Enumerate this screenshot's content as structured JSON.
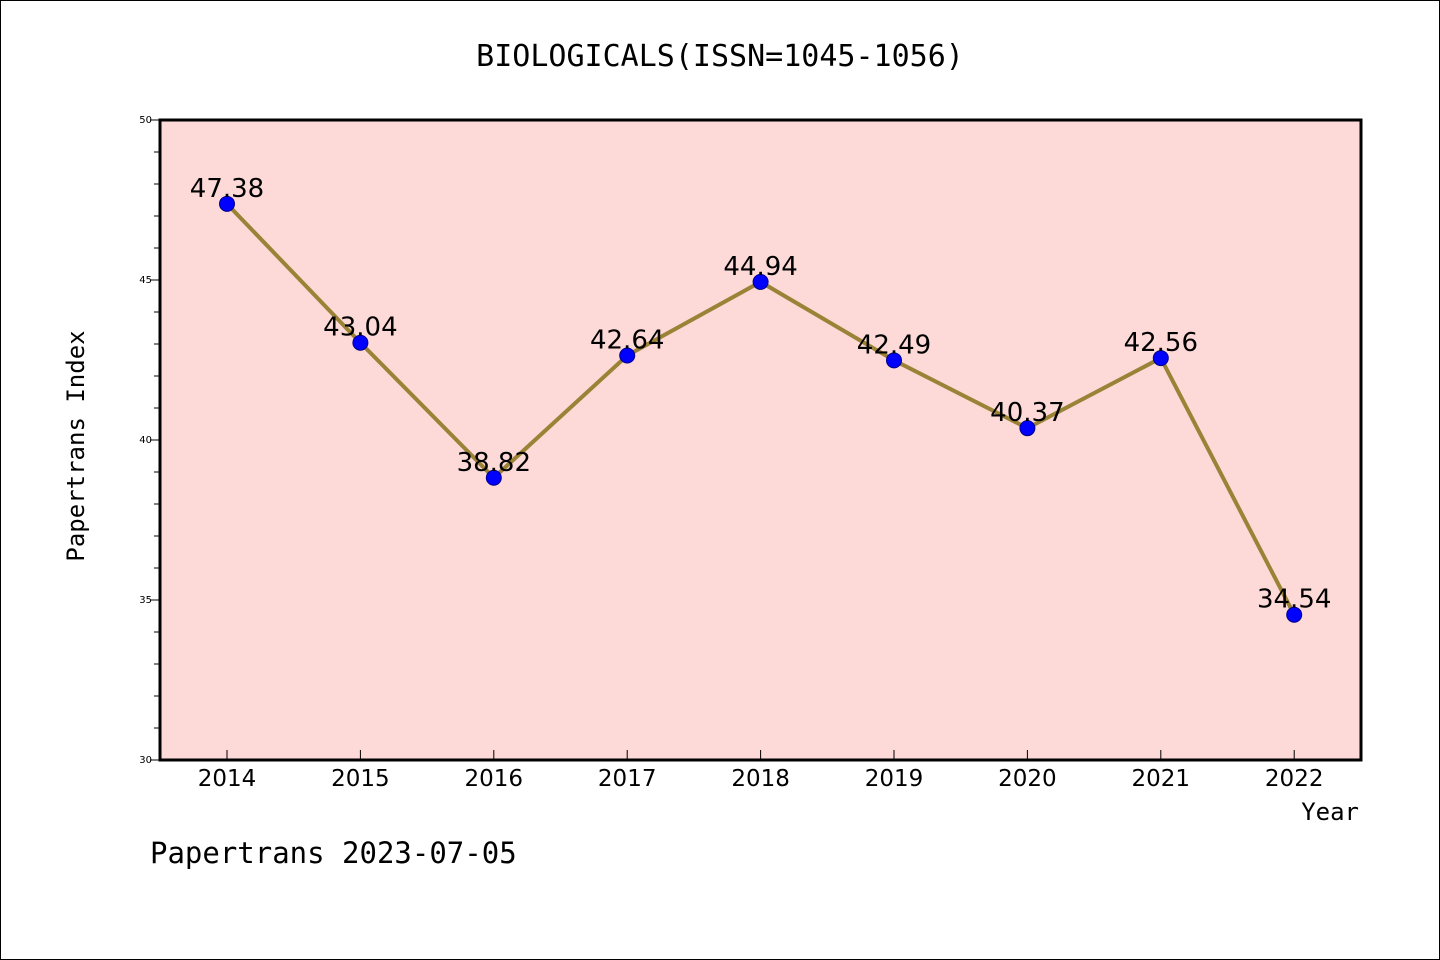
{
  "title": "BIOLOGICALS(ISSN=1045-1056)",
  "footer": "Papertrans 2023-07-05",
  "colors": {
    "background": "#ffffff",
    "plot_area": "#fdd9d7",
    "line": "#9a8236",
    "marker": "#0000ff",
    "axis": "#000000"
  },
  "chart_data": {
    "type": "line",
    "title": "BIOLOGICALS(ISSN=1045-1056)",
    "xlabel": "Year",
    "ylabel": "Papertrans Index",
    "x": [
      "2014",
      "2015",
      "2016",
      "2017",
      "2018",
      "2019",
      "2020",
      "2021",
      "2022"
    ],
    "series": [
      {
        "values": [
          47.38,
          43.04,
          38.82,
          42.64,
          44.94,
          42.49,
          40.37,
          42.56,
          34.54
        ],
        "labels": [
          "47.38",
          "43.04",
          "38.82",
          "42.64",
          "44.94",
          "42.49",
          "40.37",
          "42.56",
          "34.54"
        ]
      }
    ],
    "ylim": [
      30,
      50
    ],
    "yticks": [
      "30",
      "35",
      "40",
      "45",
      "50"
    ],
    "grid": false,
    "legend": "none"
  }
}
